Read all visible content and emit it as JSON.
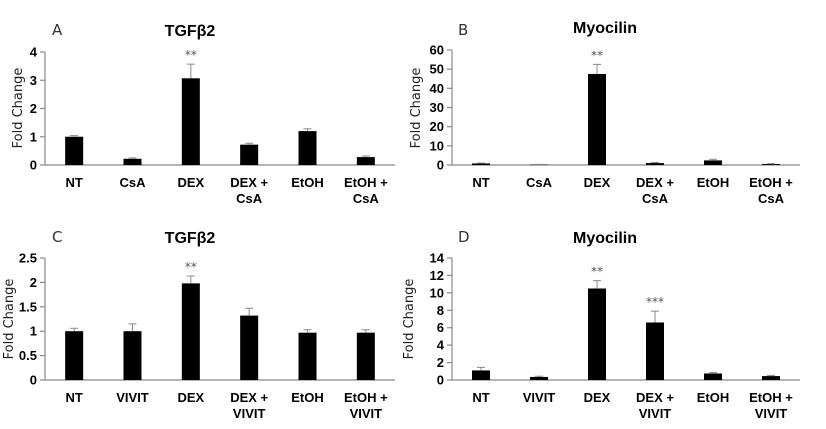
{
  "chart_data": [
    {
      "panel": "A",
      "type": "bar",
      "title": "TGFβ2",
      "xlabel": "",
      "ylabel": "Fold Change",
      "ylim": [
        0,
        4
      ],
      "yticks": [
        "0",
        "1",
        "2",
        "3",
        "4"
      ],
      "categories": [
        [
          "NT"
        ],
        [
          "CsA"
        ],
        [
          "DEX"
        ],
        [
          "DEX +",
          "CsA"
        ],
        [
          "EtOH"
        ],
        [
          "EtOH +",
          "CsA"
        ]
      ],
      "values": [
        1.0,
        0.22,
        3.07,
        0.72,
        1.2,
        0.28
      ],
      "errors": [
        0.04,
        0.03,
        0.5,
        0.05,
        0.08,
        0.04
      ],
      "annotations": [
        "",
        "",
        "**",
        "",
        "",
        ""
      ],
      "bar_color": "#000000"
    },
    {
      "panel": "B",
      "type": "bar",
      "title": "Myocilin",
      "xlabel": "",
      "ylabel": "Fold Change",
      "ylim": [
        0,
        60
      ],
      "yticks": [
        "0",
        "10",
        "20",
        "30",
        "40",
        "50",
        "60"
      ],
      "categories": [
        [
          "NT"
        ],
        [
          "CsA"
        ],
        [
          "DEX"
        ],
        [
          "DEX +",
          "CsA"
        ],
        [
          "EtOH"
        ],
        [
          "EtOH +",
          "CsA"
        ]
      ],
      "values": [
        0.8,
        0.2,
        47.5,
        1.0,
        2.4,
        0.5
      ],
      "errors": [
        0.2,
        0.1,
        5.0,
        0.3,
        0.6,
        0.2
      ],
      "annotations": [
        "",
        "",
        "**",
        "",
        "",
        ""
      ],
      "bar_color": "#000000"
    },
    {
      "panel": "C",
      "type": "bar",
      "title": "TGFβ2",
      "xlabel": "",
      "ylabel": "Fold Change",
      "ylim": [
        0,
        2.5
      ],
      "yticks": [
        "0",
        "0.5",
        "1",
        "1.5",
        "2",
        "2.5"
      ],
      "categories": [
        [
          "NT"
        ],
        [
          "VIVIT"
        ],
        [
          "DEX"
        ],
        [
          "DEX +",
          "VIVIT"
        ],
        [
          "EtOH"
        ],
        [
          "EtOH +",
          "VIVIT"
        ]
      ],
      "values": [
        1.0,
        1.0,
        1.98,
        1.32,
        0.97,
        0.97
      ],
      "errors": [
        0.06,
        0.15,
        0.15,
        0.15,
        0.06,
        0.06
      ],
      "annotations": [
        "",
        "",
        "**",
        "",
        "",
        ""
      ],
      "bar_color": "#000000"
    },
    {
      "panel": "D",
      "type": "bar",
      "title": "Myocilin",
      "xlabel": "",
      "ylabel": "Fold Change",
      "ylim": [
        0,
        14
      ],
      "yticks": [
        "0",
        "2",
        "4",
        "6",
        "8",
        "10",
        "12",
        "14"
      ],
      "categories": [
        [
          "NT"
        ],
        [
          "VIVIT"
        ],
        [
          "DEX"
        ],
        [
          "DEX +",
          "VIVIT"
        ],
        [
          "EtOH"
        ],
        [
          "EtOH +",
          "VIVIT"
        ]
      ],
      "values": [
        1.1,
        0.35,
        10.5,
        6.6,
        0.75,
        0.45
      ],
      "errors": [
        0.35,
        0.08,
        0.9,
        1.3,
        0.1,
        0.08
      ],
      "annotations": [
        "",
        "",
        "**",
        "***",
        "",
        ""
      ],
      "bar_color": "#000000"
    }
  ]
}
